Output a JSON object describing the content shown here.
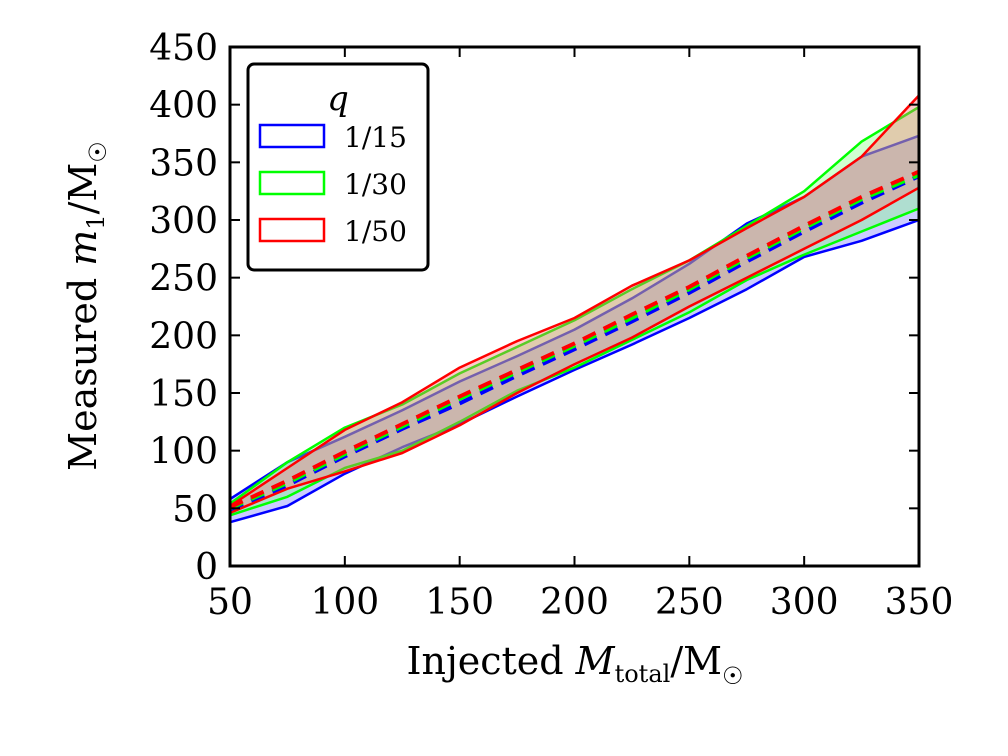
{
  "chart_data": {
    "type": "area",
    "xlabel": {
      "prefix": "Injected ",
      "var": "M",
      "sub": "total",
      "suffix": "/M",
      "sun": "☉"
    },
    "ylabel": {
      "prefix": "Measured ",
      "var": "m",
      "sub": "1",
      "suffix": "/M",
      "sun": "☉"
    },
    "xlim": [
      50,
      350
    ],
    "ylim": [
      0,
      450
    ],
    "xticks": [
      50,
      100,
      150,
      200,
      250,
      300,
      350
    ],
    "yticks": [
      0,
      50,
      100,
      150,
      200,
      250,
      300,
      350,
      400,
      450
    ],
    "grid": false,
    "legend": {
      "title": "q",
      "placement": "top-left"
    },
    "x": [
      50,
      75,
      100,
      125,
      150,
      175,
      200,
      225,
      250,
      275,
      300,
      325,
      350
    ],
    "series": [
      {
        "name": "1/15",
        "color": "#0000ff",
        "upper": [
          58,
          90,
          112,
          135,
          160,
          182,
          205,
          232,
          262,
          297,
          320,
          355,
          373
        ],
        "lower": [
          38,
          52,
          80,
          103,
          123,
          147,
          170,
          192,
          215,
          240,
          268,
          282,
          300
        ],
        "median": [
          49,
          70,
          95,
          119,
          141,
          165,
          188,
          212,
          237,
          264,
          290,
          315,
          338
        ]
      },
      {
        "name": "1/30",
        "color": "#00ff00",
        "upper": [
          54,
          90,
          120,
          140,
          167,
          190,
          213,
          240,
          265,
          295,
          325,
          368,
          398
        ],
        "lower": [
          44,
          60,
          85,
          100,
          125,
          152,
          172,
          196,
          220,
          248,
          270,
          290,
          310
        ],
        "median": [
          50,
          72,
          97,
          121,
          145,
          168,
          191,
          215,
          240,
          267,
          293,
          318,
          339
        ]
      },
      {
        "name": "1/50",
        "color": "#ff0000",
        "upper": [
          52,
          85,
          118,
          142,
          172,
          195,
          215,
          243,
          265,
          293,
          320,
          355,
          408
        ],
        "lower": [
          46,
          67,
          82,
          98,
          122,
          150,
          175,
          198,
          225,
          250,
          275,
          300,
          328
        ],
        "median": [
          51,
          74,
          99,
          123,
          147,
          170,
          193,
          218,
          242,
          269,
          295,
          320,
          342
        ]
      }
    ]
  }
}
